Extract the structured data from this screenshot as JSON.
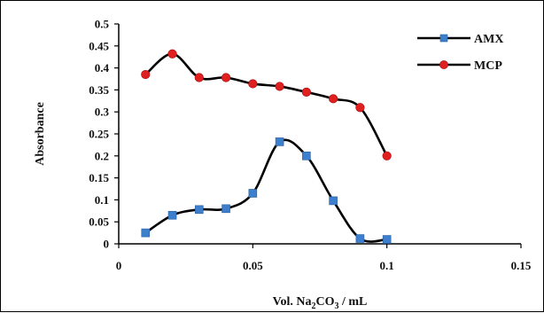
{
  "chart_data": {
    "type": "line",
    "xlabel": "Vol. Na2CO3 / mL",
    "xlabel_parts": {
      "prefix": "Vol. Na",
      "sub1": "2",
      "mid": "CO",
      "sub2": "3",
      "suffix": " / mL"
    },
    "ylabel": "Absorbance",
    "xlim": [
      0,
      0.15
    ],
    "ylim": [
      0,
      0.5
    ],
    "xticks": [
      "0",
      "0.05",
      "0.1",
      "0.15"
    ],
    "yticks": [
      "0",
      "0.05",
      "0.1",
      "0.15",
      "0.2",
      "0.25",
      "0.3",
      "0.35",
      "0.4",
      "0.45",
      "0.5"
    ],
    "grid": false,
    "legend_position": "top-right",
    "series": [
      {
        "name": "AMX",
        "color": "#000000",
        "marker": "square",
        "marker_color": "#3d7fcc",
        "x": [
          0.01,
          0.02,
          0.03,
          0.04,
          0.05,
          0.06,
          0.07,
          0.08,
          0.09,
          0.1
        ],
        "y": [
          0.025,
          0.065,
          0.078,
          0.08,
          0.115,
          0.232,
          0.2,
          0.098,
          0.012,
          0.01
        ]
      },
      {
        "name": "MCP",
        "color": "#000000",
        "marker": "circle",
        "marker_color": "#e02020",
        "x": [
          0.01,
          0.02,
          0.03,
          0.04,
          0.05,
          0.06,
          0.07,
          0.08,
          0.09,
          0.1
        ],
        "y": [
          0.385,
          0.432,
          0.378,
          0.378,
          0.364,
          0.358,
          0.345,
          0.33,
          0.31,
          0.2
        ]
      }
    ]
  }
}
